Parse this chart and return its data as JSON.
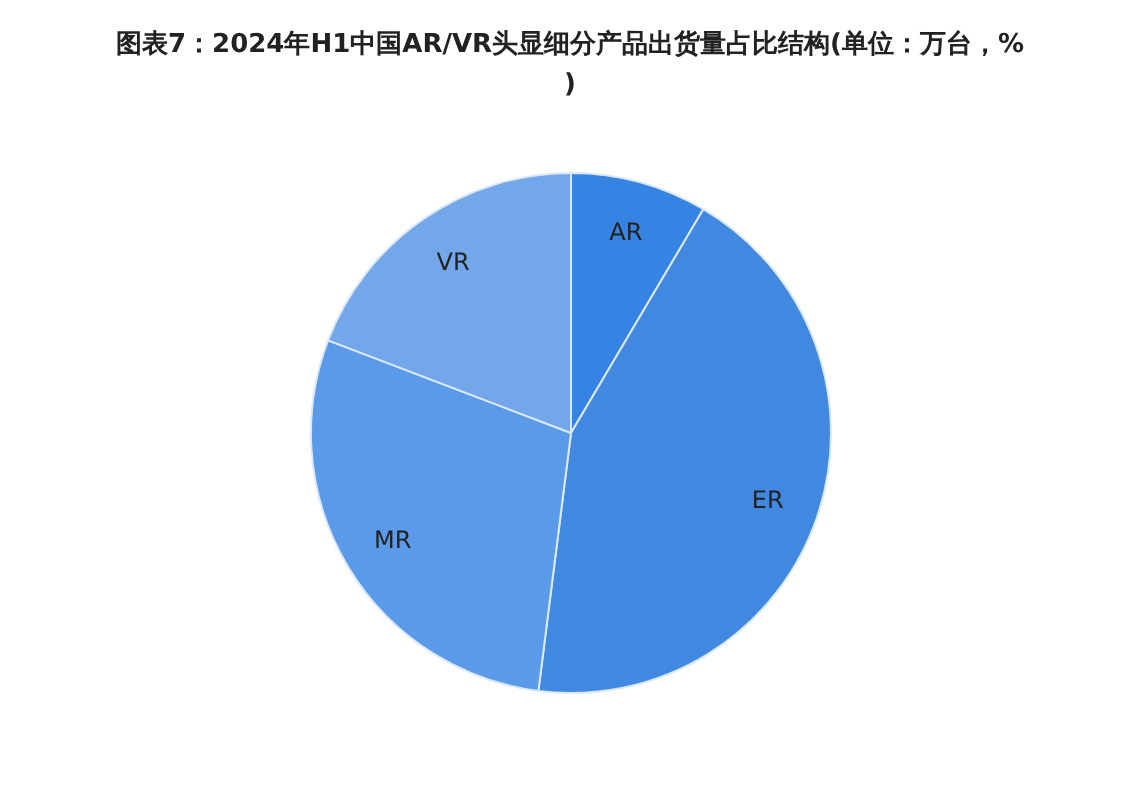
{
  "chart_data": {
    "type": "pie",
    "title": "图表7：2024年H1中国AR/VR头显细分产品出货量占比结构(单位：万台，%)",
    "categories": [
      "AR",
      "ER",
      "MR",
      "VR"
    ],
    "values": [
      8.5,
      43.5,
      28.8,
      19.2
    ],
    "colors": [
      "#3584e4",
      "#4189e0",
      "#5a9ae8",
      "#74a7ea"
    ],
    "legend": false
  }
}
